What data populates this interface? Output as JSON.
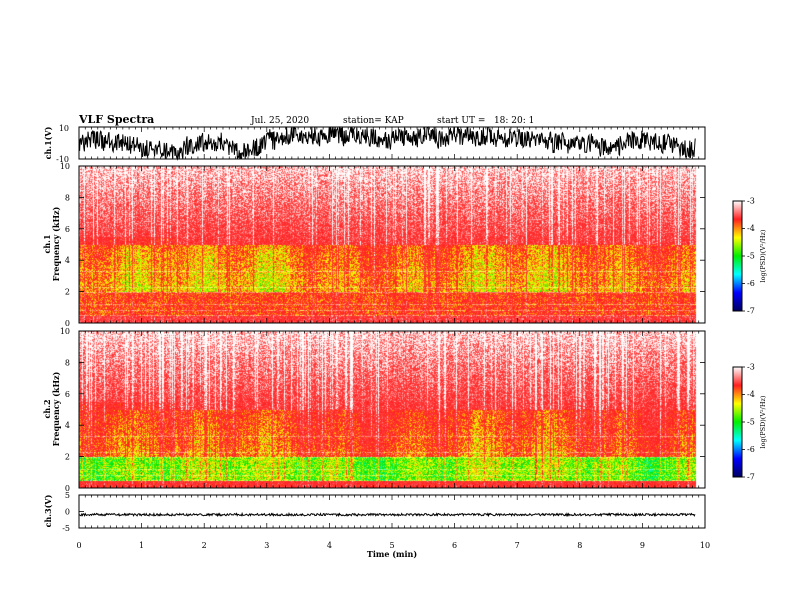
{
  "header": {
    "title": "VLF Spectra",
    "date": "Jul. 25, 2020",
    "station": "station= KAP",
    "start_ut": "start UT =   18: 20: 1"
  },
  "colorbar": {
    "label": "log(PSD)(V²/Hz)",
    "ticks": [
      "-3",
      "-4",
      "-5",
      "-6",
      "-7"
    ],
    "colors": [
      "#ffffff",
      "#ff2020",
      "#ffff00",
      "#00ee00",
      "#00ffff",
      "#0000ff",
      "#000060"
    ]
  },
  "chart_data": [
    {
      "type": "line",
      "panel": "ch1_waveform",
      "ylabel": "ch.1(V)",
      "yticks": [
        "10",
        "-10"
      ],
      "ylim": [
        -10,
        10
      ],
      "xlim": [
        0,
        10
      ],
      "series": [
        {
          "color": "#000000",
          "x_end": 9.85,
          "approx_range": [
            -10,
            10
          ]
        }
      ]
    },
    {
      "type": "heatmap",
      "panel": "ch1_spectrogram",
      "ylabel": "ch.1",
      "ylabel2": "Frequency (kHz)",
      "yticks": [
        "10",
        "8",
        "6",
        "4",
        "2",
        "0"
      ],
      "ylim": [
        0,
        10
      ],
      "xlim": [
        0,
        10
      ],
      "x_end": 9.85,
      "value_range": [
        -7,
        -3
      ],
      "description_levels": {
        "above_5kHz": -3.2,
        "2_to_5kHz": -4.2,
        "1_to_2kHz": -4.0,
        "below_0.5kHz": -3.5
      }
    },
    {
      "type": "heatmap",
      "panel": "ch2_spectrogram",
      "ylabel": "ch.2",
      "ylabel2": "Frequency (kHz)",
      "yticks": [
        "10",
        "8",
        "6",
        "4",
        "2",
        "0"
      ],
      "ylim": [
        0,
        10
      ],
      "xlim": [
        0,
        10
      ],
      "x_end": 9.85,
      "value_range": [
        -7,
        -3
      ],
      "description_levels": {
        "above_5kHz": -3.2,
        "2_to_5kHz": -4.0,
        "1_to_2kHz": -4.6,
        "below_0.5kHz": -3.6
      }
    },
    {
      "type": "line",
      "panel": "ch3_waveform",
      "ylabel": "ch.3(V)",
      "yticks": [
        "5",
        "0",
        "-5"
      ],
      "ylim": [
        -5,
        5
      ],
      "xlim": [
        0,
        10
      ],
      "xlabel": "Time (min)",
      "xticks": [
        "0",
        "1",
        "2",
        "3",
        "4",
        "5",
        "6",
        "7",
        "8",
        "9",
        "10"
      ],
      "series": [
        {
          "color": "#000000",
          "x_end": 9.85,
          "approx_range": [
            -1.3,
            -0.6
          ]
        }
      ]
    }
  ]
}
